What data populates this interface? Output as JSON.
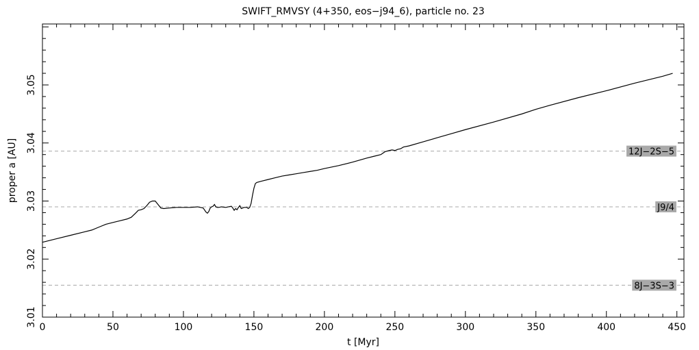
{
  "chart_data": {
    "type": "line",
    "title": "SWIFT_RMVSY (4+350, eos−j94_6), particle no. 23",
    "xlabel": "t [Myr]",
    "ylabel": "proper a [AU]",
    "xlim": [
      0,
      455
    ],
    "ylim": [
      3.01,
      3.0605
    ],
    "x_ticks": [
      0,
      50,
      100,
      150,
      200,
      250,
      300,
      350,
      400,
      450
    ],
    "x_tick_labels": [
      "0",
      "50",
      "100",
      "150",
      "200",
      "250",
      "300",
      "350",
      "400",
      "450"
    ],
    "y_ticks": [
      3.01,
      3.02,
      3.03,
      3.04,
      3.05
    ],
    "y_tick_labels": [
      "3.01",
      "3.02",
      "3.03",
      "3.04",
      "3.05"
    ],
    "grid": false,
    "colors": {
      "line": "#000000",
      "resonance_line": "#a8a8a8",
      "resonance_label_bg": "#a9a9a9",
      "axes": "#000000"
    },
    "resonances": [
      {
        "name": "12J−2S−5",
        "a": 3.0386
      },
      {
        "name": "J9/4",
        "a": 3.029
      },
      {
        "name": "8J−3S−3",
        "a": 3.0155
      }
    ],
    "series": [
      {
        "x": [
          0,
          10,
          20,
          30,
          35,
          40,
          45,
          50,
          55,
          60,
          63,
          66,
          68,
          70,
          72,
          74,
          76,
          78,
          80,
          82,
          84,
          86,
          90,
          95,
          100,
          105,
          110,
          112,
          114,
          116,
          117,
          118,
          119,
          120,
          121,
          122,
          123,
          124,
          125,
          127,
          130,
          132,
          134,
          135,
          136,
          137,
          138,
          139,
          140,
          141,
          142,
          143,
          144,
          145,
          146,
          147,
          148,
          149,
          150,
          151,
          152,
          155,
          160,
          165,
          170,
          175,
          180,
          185,
          190,
          195,
          200,
          210,
          220,
          230,
          235,
          240,
          243,
          246,
          248,
          250,
          252,
          254,
          256,
          260,
          270,
          280,
          290,
          300,
          320,
          340,
          350,
          360,
          380,
          400,
          420,
          440,
          447
        ],
        "y": [
          3.0229,
          3.0235,
          3.0241,
          3.0247,
          3.025,
          3.0255,
          3.026,
          3.0263,
          3.0266,
          3.0269,
          3.0272,
          3.0279,
          3.0284,
          3.0285,
          3.0287,
          3.0292,
          3.0298,
          3.03,
          3.03,
          3.0294,
          3.0288,
          3.0287,
          3.0288,
          3.0289,
          3.0289,
          3.0289,
          3.029,
          3.0289,
          3.0288,
          3.0281,
          3.0279,
          3.0282,
          3.0288,
          3.029,
          3.0291,
          3.0294,
          3.029,
          3.0289,
          3.0289,
          3.029,
          3.0289,
          3.029,
          3.0291,
          3.0288,
          3.0284,
          3.0287,
          3.0285,
          3.0289,
          3.0292,
          3.0287,
          3.0288,
          3.0289,
          3.0289,
          3.0289,
          3.0287,
          3.0289,
          3.0296,
          3.031,
          3.0322,
          3.033,
          3.0332,
          3.0334,
          3.0337,
          3.034,
          3.0343,
          3.0345,
          3.0347,
          3.0349,
          3.0351,
          3.0353,
          3.0356,
          3.0361,
          3.0367,
          3.0374,
          3.0377,
          3.038,
          3.0385,
          3.0387,
          3.0388,
          3.0387,
          3.0389,
          3.039,
          3.0393,
          3.0395,
          3.0402,
          3.0409,
          3.0416,
          3.0423,
          3.0436,
          3.045,
          3.0458,
          3.0465,
          3.0478,
          3.049,
          3.0503,
          3.0515,
          3.052
        ]
      }
    ]
  }
}
